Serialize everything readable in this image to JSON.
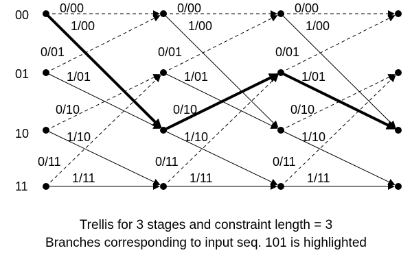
{
  "states": [
    "00",
    "01",
    "10",
    "11"
  ],
  "edges": [
    {
      "stage": 0,
      "from": 0,
      "to": 0,
      "label": "0/00",
      "style": "dashed"
    },
    {
      "stage": 0,
      "from": 0,
      "to": 2,
      "label": "1/00",
      "style": "bold"
    },
    {
      "stage": 0,
      "from": 1,
      "to": 0,
      "label": "0/01",
      "style": "dashed"
    },
    {
      "stage": 0,
      "from": 1,
      "to": 2,
      "label": "1/01",
      "style": "solid"
    },
    {
      "stage": 0,
      "from": 2,
      "to": 1,
      "label": "0/10",
      "style": "dashed"
    },
    {
      "stage": 0,
      "from": 2,
      "to": 3,
      "label": "1/10",
      "style": "solid"
    },
    {
      "stage": 0,
      "from": 3,
      "to": 1,
      "label": "0/11",
      "style": "dashed"
    },
    {
      "stage": 0,
      "from": 3,
      "to": 3,
      "label": "1/11",
      "style": "solid"
    },
    {
      "stage": 1,
      "from": 0,
      "to": 0,
      "label": "0/00",
      "style": "dashed"
    },
    {
      "stage": 1,
      "from": 0,
      "to": 2,
      "label": "1/00",
      "style": "solid"
    },
    {
      "stage": 1,
      "from": 1,
      "to": 0,
      "label": "0/01",
      "style": "dashed"
    },
    {
      "stage": 1,
      "from": 1,
      "to": 2,
      "label": "1/01",
      "style": "solid"
    },
    {
      "stage": 1,
      "from": 2,
      "to": 1,
      "label": "0/10",
      "style": "bold"
    },
    {
      "stage": 1,
      "from": 2,
      "to": 3,
      "label": "1/10",
      "style": "solid"
    },
    {
      "stage": 1,
      "from": 3,
      "to": 1,
      "label": "0/11",
      "style": "dashed"
    },
    {
      "stage": 1,
      "from": 3,
      "to": 3,
      "label": "1/11",
      "style": "solid"
    },
    {
      "stage": 2,
      "from": 0,
      "to": 0,
      "label": "0/00",
      "style": "dashed"
    },
    {
      "stage": 2,
      "from": 0,
      "to": 2,
      "label": "1/00",
      "style": "solid"
    },
    {
      "stage": 2,
      "from": 1,
      "to": 0,
      "label": "0/01",
      "style": "dashed"
    },
    {
      "stage": 2,
      "from": 1,
      "to": 2,
      "label": "1/01",
      "style": "bold"
    },
    {
      "stage": 2,
      "from": 2,
      "to": 1,
      "label": "0/10",
      "style": "dashed"
    },
    {
      "stage": 2,
      "from": 2,
      "to": 3,
      "label": "1/10",
      "style": "solid"
    },
    {
      "stage": 2,
      "from": 3,
      "to": 1,
      "label": "0/11",
      "style": "dashed"
    },
    {
      "stage": 2,
      "from": 3,
      "to": 3,
      "label": "1/11",
      "style": "solid"
    }
  ],
  "caption": {
    "line1": "Trellis for 3 stages and constraint length = 3",
    "line2": "Branches corresponding to input seq. 101 is highlighted"
  }
}
